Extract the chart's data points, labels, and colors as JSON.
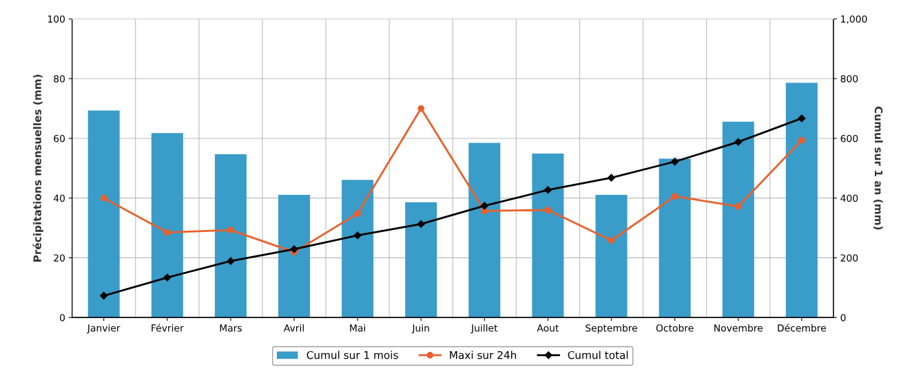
{
  "chart_data": {
    "type": "bar",
    "ylabel": "Précipitations mensuelles (mm)",
    "y2label": "Cumul sur 1 an (mm)",
    "categories": [
      "Janvier",
      "Février",
      "Mars",
      "Avril",
      "Mai",
      "Juin",
      "Juillet",
      "Aout",
      "Septembre",
      "Octobre",
      "Novembre",
      "Décembre"
    ],
    "series": [
      {
        "name": "Cumul sur 1 mois",
        "color": "#3a9cc9",
        "values": [
          69.3,
          61.8,
          54.7,
          41.1,
          46.1,
          38.6,
          58.5,
          54.9,
          41.1,
          53.2,
          65.6,
          78.6
        ]
      },
      {
        "name": "Maxi sur 24h",
        "type": "line",
        "color": "#e8602c",
        "marker": "circle",
        "values": [
          40,
          28.5,
          29.3,
          21.9,
          34.8,
          70,
          35.7,
          36,
          25.8,
          40.6,
          37.2,
          59.4
        ]
      },
      {
        "name": "Cumul total",
        "type": "line",
        "color": "#000000",
        "marker": "diamond",
        "axis": "y2",
        "values": [
          73,
          134,
          189,
          229,
          275,
          313,
          374,
          427,
          468,
          522,
          588,
          667
        ]
      }
    ],
    "ylim": [
      0,
      100
    ],
    "yticks": [
      0,
      20,
      40,
      60,
      80,
      100
    ],
    "y2lim": [
      0,
      1000
    ],
    "y2ticks": [
      0,
      200,
      400,
      600,
      800,
      {
        "value": 1000,
        "label": "1,000"
      }
    ],
    "grid": true,
    "legend": "bottom"
  }
}
